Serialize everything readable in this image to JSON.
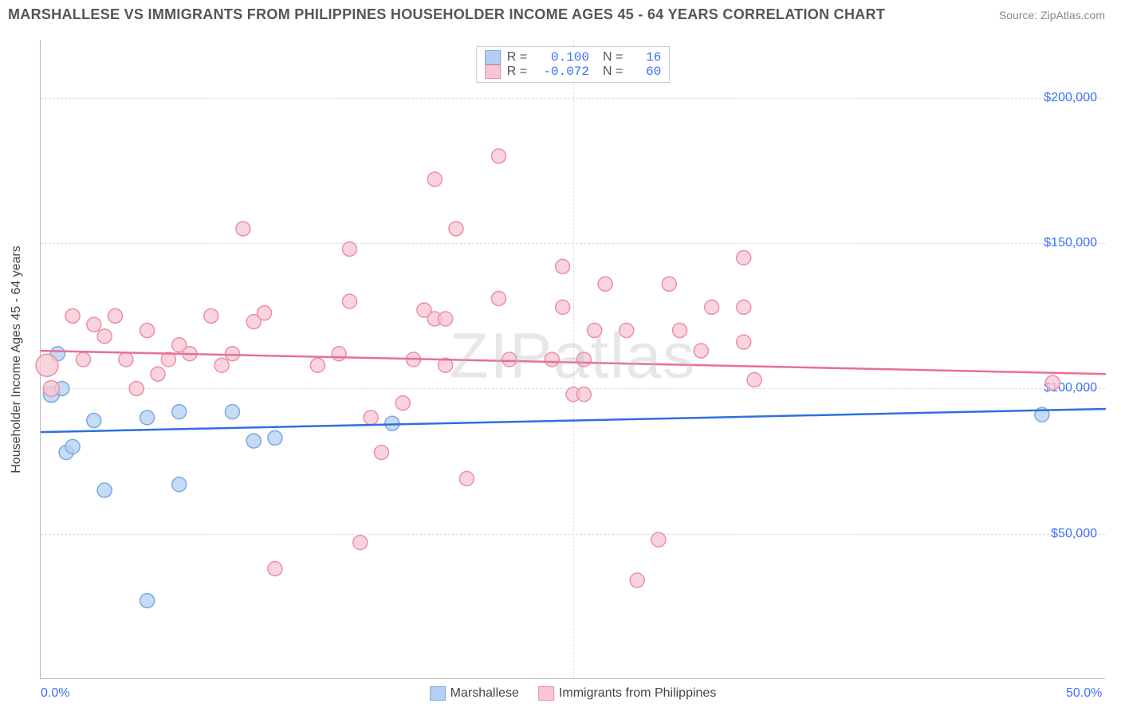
{
  "title": "MARSHALLESE VS IMMIGRANTS FROM PHILIPPINES HOUSEHOLDER INCOME AGES 45 - 64 YEARS CORRELATION CHART",
  "source": "Source: ZipAtlas.com",
  "watermark": "ZIPatlas",
  "yaxis_title": "Householder Income Ages 45 - 64 years",
  "chart": {
    "type": "scatter",
    "xlim": [
      0,
      50
    ],
    "ylim": [
      0,
      220000
    ],
    "x_ticks": [
      {
        "v": 0,
        "label": "0.0%"
      },
      {
        "v": 50,
        "label": "50.0%"
      }
    ],
    "y_ticks": [
      {
        "v": 50000,
        "label": "$50,000"
      },
      {
        "v": 100000,
        "label": "$100,000"
      },
      {
        "v": 150000,
        "label": "$150,000"
      },
      {
        "v": 200000,
        "label": "$200,000"
      }
    ],
    "v_grid": [
      25
    ],
    "background_color": "#ffffff",
    "grid_color": "#dddddd",
    "series": [
      {
        "name": "Marshallese",
        "fill": "#b3cff2",
        "stroke": "#7aa9e0",
        "line_stroke": "#2f6fe0",
        "r_value": "0.100",
        "n_value": "16",
        "trend": {
          "x1": 0,
          "y1": 85000,
          "x2": 50,
          "y2": 93000
        },
        "points": [
          {
            "x": 0.5,
            "y": 98000,
            "r": 10
          },
          {
            "x": 0.8,
            "y": 112000,
            "r": 9
          },
          {
            "x": 1.0,
            "y": 100000,
            "r": 9
          },
          {
            "x": 1.2,
            "y": 78000,
            "r": 9
          },
          {
            "x": 1.5,
            "y": 80000,
            "r": 9
          },
          {
            "x": 2.5,
            "y": 89000,
            "r": 9
          },
          {
            "x": 3.0,
            "y": 65000,
            "r": 9
          },
          {
            "x": 5.0,
            "y": 90000,
            "r": 9
          },
          {
            "x": 5.0,
            "y": 27000,
            "r": 9
          },
          {
            "x": 6.5,
            "y": 92000,
            "r": 9
          },
          {
            "x": 6.5,
            "y": 67000,
            "r": 9
          },
          {
            "x": 9.0,
            "y": 92000,
            "r": 9
          },
          {
            "x": 10.0,
            "y": 82000,
            "r": 9
          },
          {
            "x": 11.0,
            "y": 83000,
            "r": 9
          },
          {
            "x": 16.5,
            "y": 88000,
            "r": 9
          },
          {
            "x": 47.0,
            "y": 91000,
            "r": 9
          }
        ]
      },
      {
        "name": "Immigrants from Philippines",
        "fill": "#f7c6d2",
        "stroke": "#eb8fa8",
        "line_stroke": "#e76f96",
        "r_value": "-0.072",
        "n_value": "60",
        "trend": {
          "x1": 0,
          "y1": 113000,
          "x2": 50,
          "y2": 105000
        },
        "points": [
          {
            "x": 0.3,
            "y": 108000,
            "r": 14
          },
          {
            "x": 0.5,
            "y": 100000,
            "r": 10
          },
          {
            "x": 1.5,
            "y": 125000,
            "r": 9
          },
          {
            "x": 2.0,
            "y": 110000,
            "r": 9
          },
          {
            "x": 2.5,
            "y": 122000,
            "r": 9
          },
          {
            "x": 3.0,
            "y": 118000,
            "r": 9
          },
          {
            "x": 3.5,
            "y": 125000,
            "r": 9
          },
          {
            "x": 4.0,
            "y": 110000,
            "r": 9
          },
          {
            "x": 4.5,
            "y": 100000,
            "r": 9
          },
          {
            "x": 5.0,
            "y": 120000,
            "r": 9
          },
          {
            "x": 5.5,
            "y": 105000,
            "r": 9
          },
          {
            "x": 6.0,
            "y": 110000,
            "r": 9
          },
          {
            "x": 6.5,
            "y": 115000,
            "r": 9
          },
          {
            "x": 7.0,
            "y": 112000,
            "r": 9
          },
          {
            "x": 8.0,
            "y": 125000,
            "r": 9
          },
          {
            "x": 8.5,
            "y": 108000,
            "r": 9
          },
          {
            "x": 9.0,
            "y": 112000,
            "r": 9
          },
          {
            "x": 9.5,
            "y": 155000,
            "r": 9
          },
          {
            "x": 10.0,
            "y": 123000,
            "r": 9
          },
          {
            "x": 10.5,
            "y": 126000,
            "r": 9
          },
          {
            "x": 11.0,
            "y": 38000,
            "r": 9
          },
          {
            "x": 13.0,
            "y": 108000,
            "r": 9
          },
          {
            "x": 14.0,
            "y": 112000,
            "r": 9
          },
          {
            "x": 14.5,
            "y": 130000,
            "r": 9
          },
          {
            "x": 14.5,
            "y": 148000,
            "r": 9
          },
          {
            "x": 15.0,
            "y": 47000,
            "r": 9
          },
          {
            "x": 15.5,
            "y": 90000,
            "r": 9
          },
          {
            "x": 16.0,
            "y": 78000,
            "r": 9
          },
          {
            "x": 17.0,
            "y": 95000,
            "r": 9
          },
          {
            "x": 17.5,
            "y": 110000,
            "r": 9
          },
          {
            "x": 18.0,
            "y": 127000,
            "r": 9
          },
          {
            "x": 18.5,
            "y": 172000,
            "r": 9
          },
          {
            "x": 18.5,
            "y": 124000,
            "r": 9
          },
          {
            "x": 19.0,
            "y": 124000,
            "r": 9
          },
          {
            "x": 19.0,
            "y": 108000,
            "r": 9
          },
          {
            "x": 19.5,
            "y": 155000,
            "r": 9
          },
          {
            "x": 20.0,
            "y": 69000,
            "r": 9
          },
          {
            "x": 21.5,
            "y": 180000,
            "r": 9
          },
          {
            "x": 21.5,
            "y": 131000,
            "r": 9
          },
          {
            "x": 22.0,
            "y": 110000,
            "r": 9
          },
          {
            "x": 24.0,
            "y": 110000,
            "r": 9
          },
          {
            "x": 24.5,
            "y": 142000,
            "r": 9
          },
          {
            "x": 24.5,
            "y": 128000,
            "r": 9
          },
          {
            "x": 25.0,
            "y": 98000,
            "r": 9
          },
          {
            "x": 25.5,
            "y": 98000,
            "r": 9
          },
          {
            "x": 25.5,
            "y": 110000,
            "r": 9
          },
          {
            "x": 26.0,
            "y": 120000,
            "r": 9
          },
          {
            "x": 26.5,
            "y": 136000,
            "r": 9
          },
          {
            "x": 27.5,
            "y": 120000,
            "r": 9
          },
          {
            "x": 28.0,
            "y": 34000,
            "r": 9
          },
          {
            "x": 29.0,
            "y": 48000,
            "r": 9
          },
          {
            "x": 29.5,
            "y": 136000,
            "r": 9
          },
          {
            "x": 30.0,
            "y": 120000,
            "r": 9
          },
          {
            "x": 31.0,
            "y": 113000,
            "r": 9
          },
          {
            "x": 31.5,
            "y": 128000,
            "r": 9
          },
          {
            "x": 33.0,
            "y": 145000,
            "r": 9
          },
          {
            "x": 33.0,
            "y": 128000,
            "r": 9
          },
          {
            "x": 33.0,
            "y": 116000,
            "r": 9
          },
          {
            "x": 33.5,
            "y": 103000,
            "r": 9
          },
          {
            "x": 47.5,
            "y": 102000,
            "r": 9
          }
        ]
      }
    ]
  }
}
